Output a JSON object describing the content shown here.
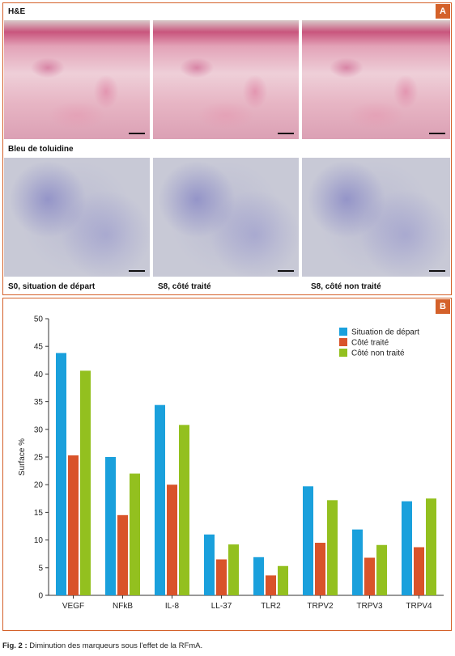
{
  "panel_a": {
    "badge": "A",
    "row1_label": "H&E",
    "row2_label": "Bleu de toluidine",
    "col_labels": [
      "S0, situation de départ",
      "S8, côté traité",
      "S8, côté non traité"
    ]
  },
  "panel_b": {
    "badge": "B"
  },
  "caption": {
    "prefix": "Fig. 2 :",
    "text": " Diminution des marqueurs sous l'effet de la RFmA."
  },
  "colors": {
    "accent": "#d4612a",
    "series1": "#1aa0dc",
    "series2": "#d9532a",
    "series3": "#93c01f"
  },
  "chart_data": {
    "type": "bar",
    "title": "",
    "xlabel": "",
    "ylabel": "Surface %",
    "ylim": [
      0,
      50
    ],
    "yticks": [
      0,
      5,
      10,
      15,
      20,
      25,
      30,
      35,
      40,
      45,
      50
    ],
    "grid": false,
    "legend_position": "top-right",
    "categories": [
      "VEGF",
      "NFkB",
      "IL-8",
      "LL-37",
      "TLR2",
      "TRPV2",
      "TRPV3",
      "TRPV4"
    ],
    "series": [
      {
        "name": "Situation de départ",
        "color": "#1aa0dc",
        "values": [
          43.8,
          25.0,
          34.4,
          11.0,
          6.9,
          19.7,
          11.9,
          17.0
        ]
      },
      {
        "name": "Côté traité",
        "color": "#d9532a",
        "values": [
          25.3,
          14.5,
          20.0,
          6.5,
          3.6,
          9.5,
          6.8,
          8.7
        ]
      },
      {
        "name": "Côté non traité",
        "color": "#93c01f",
        "values": [
          40.6,
          22.0,
          30.8,
          9.2,
          5.3,
          17.2,
          9.1,
          17.5
        ]
      }
    ]
  }
}
